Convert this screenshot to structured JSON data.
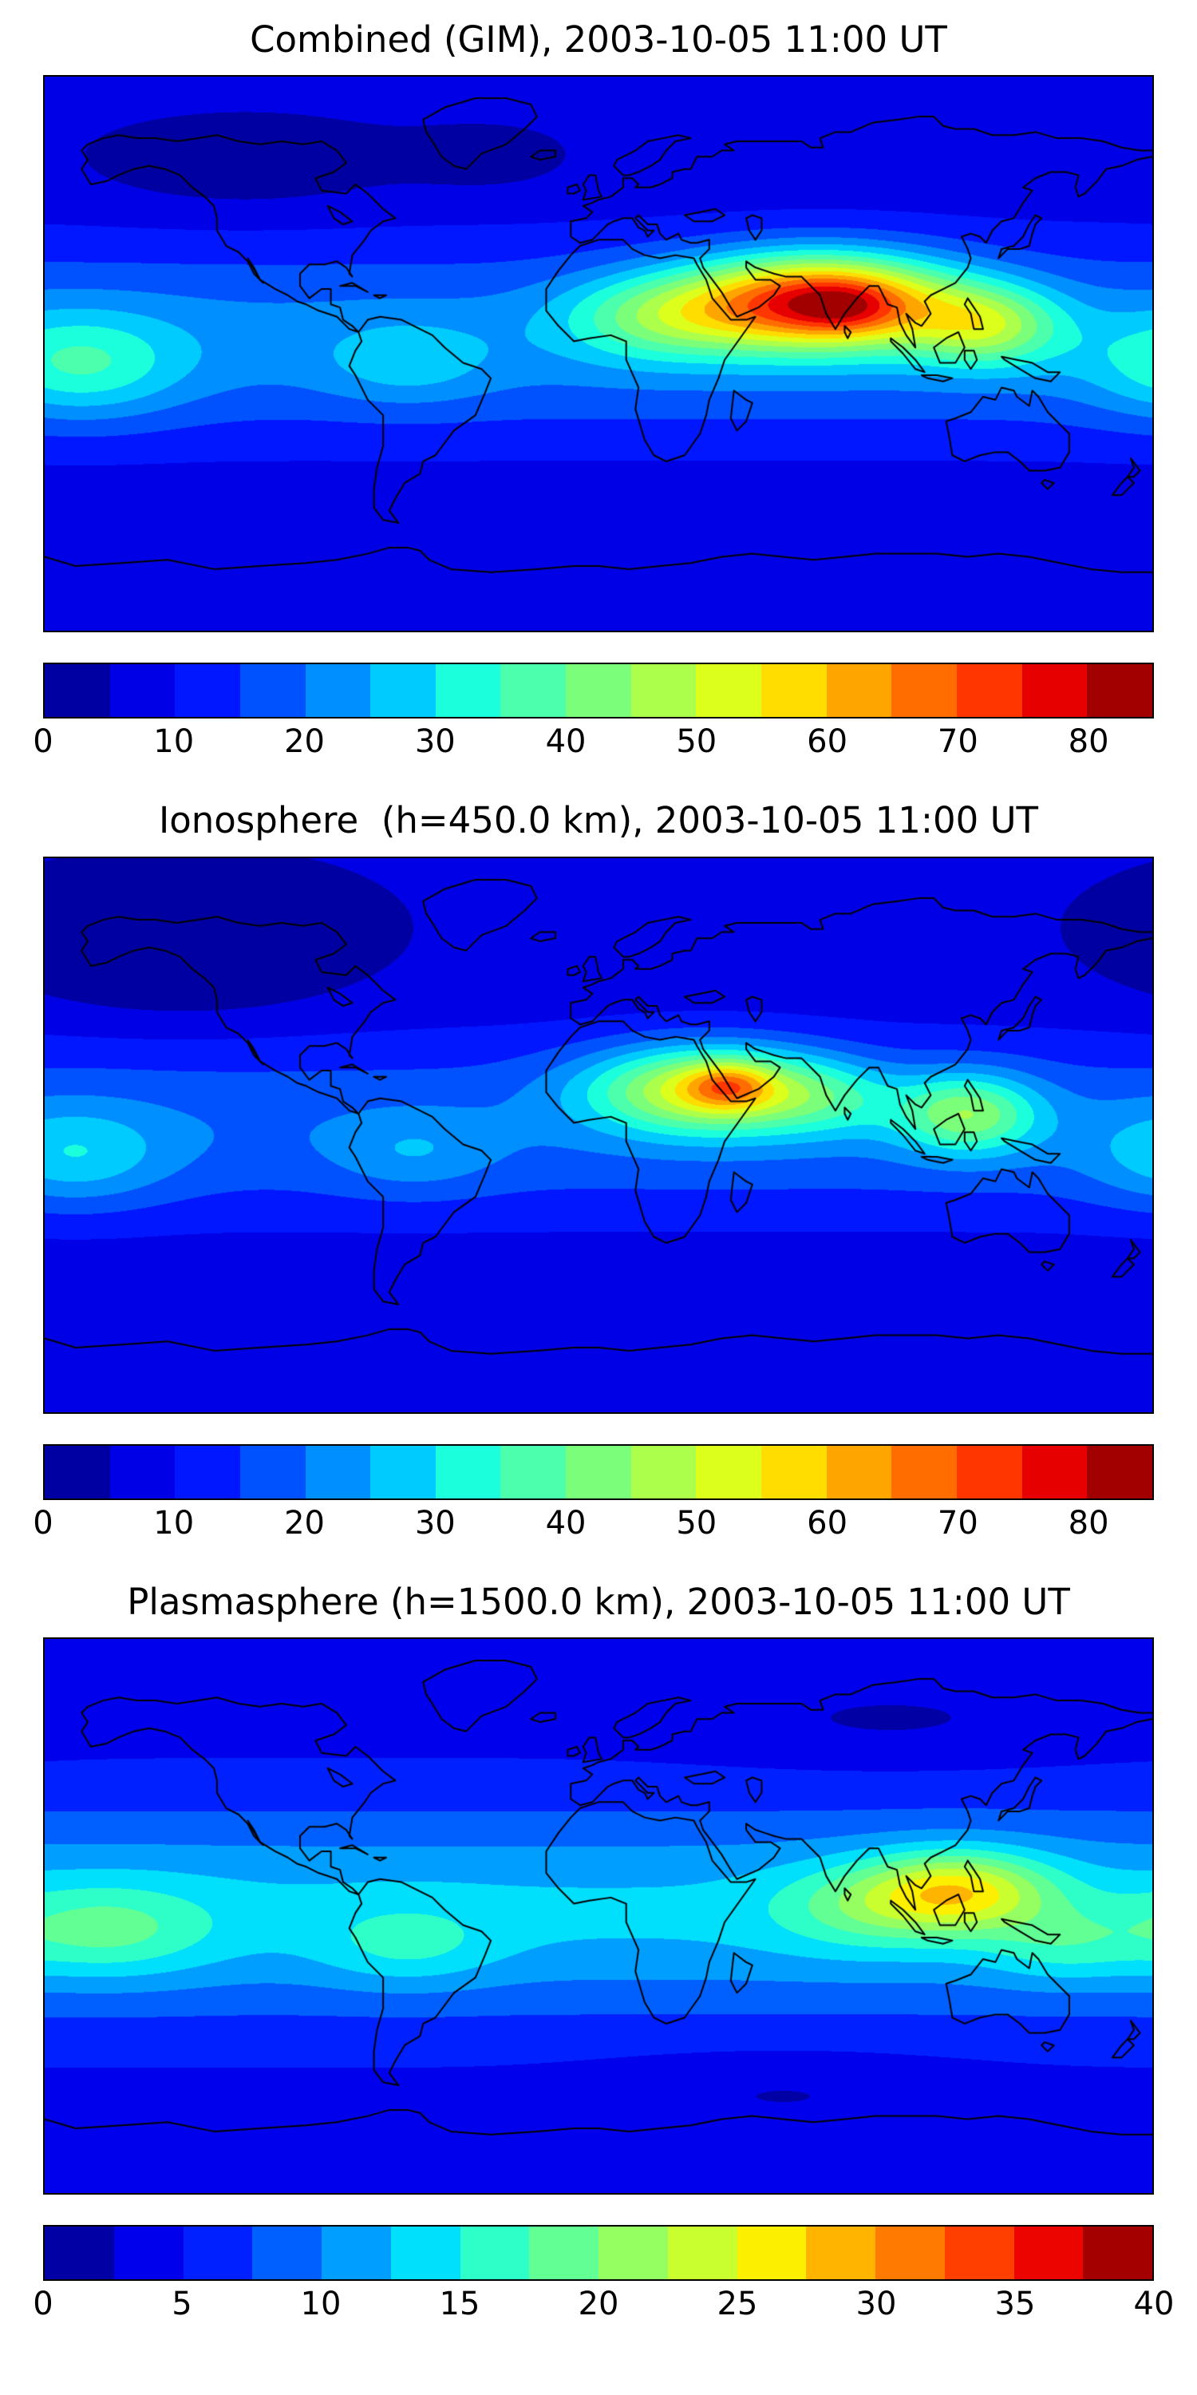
{
  "figure": {
    "background": "#ffffff",
    "map_border_color": "#000000",
    "coastline_color": "#000000",
    "text_color": "#000000",
    "colormap": "jet"
  },
  "chart_data": [
    {
      "type": "contour",
      "title": "Combined (GIM), 2003-10-05 11:00 UT",
      "x_range": [
        -180,
        180
      ],
      "y_range": [
        -90,
        90
      ],
      "colormap": "jet",
      "levels_min": 0,
      "levels_max": 85,
      "levels_step": 5,
      "colorbar_ticks": [
        0,
        10,
        20,
        30,
        40,
        50,
        60,
        70,
        80
      ],
      "field": {
        "base": {
          "offset": 6,
          "amp": 16,
          "lat0": 4,
          "sigma": 33
        },
        "blobs": [
          {
            "lon": 72,
            "lat": 17,
            "amp": 58,
            "sx": 42,
            "sy": 15
          },
          {
            "lon": 80,
            "lat": 15,
            "amp": 10,
            "sx": 16,
            "sy": 8
          },
          {
            "lon": 126,
            "lat": 9,
            "amp": 24,
            "sx": 24,
            "sy": 13
          },
          {
            "lon": 20,
            "lat": 12,
            "amp": 18,
            "sx": 32,
            "sy": 14
          },
          {
            "lon": -168,
            "lat": -4,
            "amp": 15,
            "sx": 32,
            "sy": 17
          },
          {
            "lon": -62,
            "lat": -3,
            "amp": 8,
            "sx": 26,
            "sy": 13
          },
          {
            "lon": -115,
            "lat": 60,
            "amp": -5,
            "sx": 50,
            "sy": 15
          },
          {
            "lon": -35,
            "lat": 62,
            "amp": -3,
            "sx": 30,
            "sy": 12
          }
        ]
      }
    },
    {
      "type": "contour",
      "title": "Ionosphere  (h=450.0 km), 2003-10-05 11:00 UT",
      "x_range": [
        -180,
        180
      ],
      "y_range": [
        -90,
        90
      ],
      "colormap": "jet",
      "levels_min": 0,
      "levels_max": 85,
      "levels_step": 5,
      "colorbar_ticks": [
        0,
        10,
        20,
        30,
        40,
        50,
        60,
        70,
        80
      ],
      "field": {
        "base": {
          "offset": 5,
          "amp": 14,
          "lat0": 2,
          "sigma": 33
        },
        "blobs": [
          {
            "lon": 36,
            "lat": 15,
            "amp": 38,
            "sx": 38,
            "sy": 14
          },
          {
            "lon": 42,
            "lat": 16,
            "amp": 17,
            "sx": 13,
            "sy": 7
          },
          {
            "lon": 120,
            "lat": 7,
            "amp": 26,
            "sx": 23,
            "sy": 13
          },
          {
            "lon": 75,
            "lat": 12,
            "amp": 10,
            "sx": 25,
            "sy": 12
          },
          {
            "lon": -170,
            "lat": -7,
            "amp": 12,
            "sx": 30,
            "sy": 16
          },
          {
            "lon": -60,
            "lat": -6,
            "amp": 7,
            "sx": 26,
            "sy": 13
          },
          {
            "lon": -135,
            "lat": 50,
            "amp": -5,
            "sx": 55,
            "sy": 17
          }
        ]
      }
    },
    {
      "type": "contour",
      "title": "Plasmasphere (h=1500.0 km), 2003-10-05 11:00 UT",
      "x_range": [
        -180,
        180
      ],
      "y_range": [
        -90,
        90
      ],
      "colormap": "jet",
      "levels_min": 0,
      "levels_max": 40,
      "levels_step": 2.5,
      "colorbar_ticks": [
        0,
        5,
        10,
        15,
        20,
        25,
        30,
        35,
        40
      ],
      "field": {
        "base": {
          "offset": 4,
          "amp": 9,
          "lat0": 1,
          "sigma": 34
        },
        "blobs": [
          {
            "lon": 117,
            "lat": 8,
            "amp": 14,
            "sx": 30,
            "sy": 13
          },
          {
            "lon": 85,
            "lat": 3,
            "amp": 5,
            "sx": 30,
            "sy": 14
          },
          {
            "lon": 150,
            "lat": -10,
            "amp": 4,
            "sx": 25,
            "sy": 12
          },
          {
            "lon": -160,
            "lat": -5,
            "amp": 6,
            "sx": 34,
            "sy": 15
          },
          {
            "lon": -62,
            "lat": -10,
            "amp": 4,
            "sx": 28,
            "sy": 13
          },
          {
            "lon": 95,
            "lat": 63,
            "amp": -2,
            "sx": 60,
            "sy": 13
          },
          {
            "lon": 60,
            "lat": -57,
            "amp": -2,
            "sx": 55,
            "sy": 12
          }
        ]
      }
    }
  ]
}
